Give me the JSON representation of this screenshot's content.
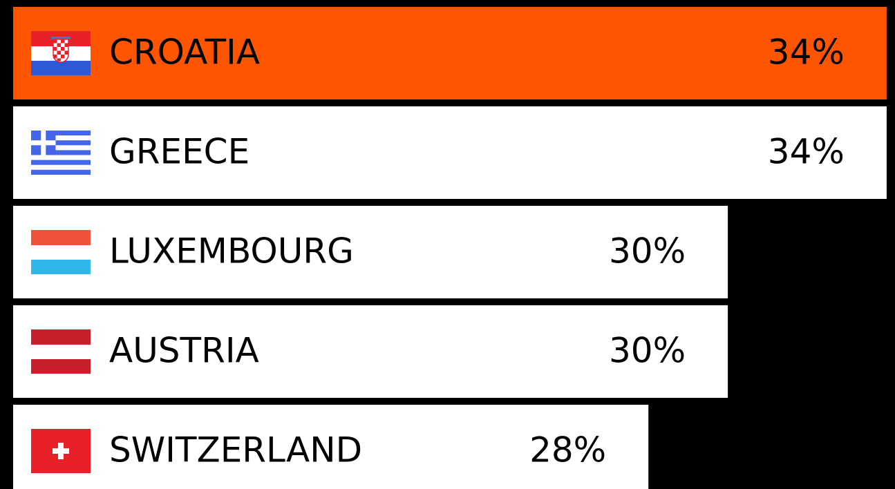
{
  "chart_data": {
    "type": "barh",
    "categories": [
      "CROATIA",
      "GREECE",
      "LUXEMBOURG",
      "AUSTRIA",
      "SWITZERLAND"
    ],
    "values": [
      34,
      34,
      30,
      30,
      28
    ],
    "value_labels": [
      "34%",
      "34%",
      "30%",
      "30%",
      "28%"
    ],
    "colors": [
      "#ff5500",
      "#ffffff",
      "#ffffff",
      "#ffffff",
      "#ffffff"
    ],
    "xlim": [
      12,
      34.2
    ]
  }
}
